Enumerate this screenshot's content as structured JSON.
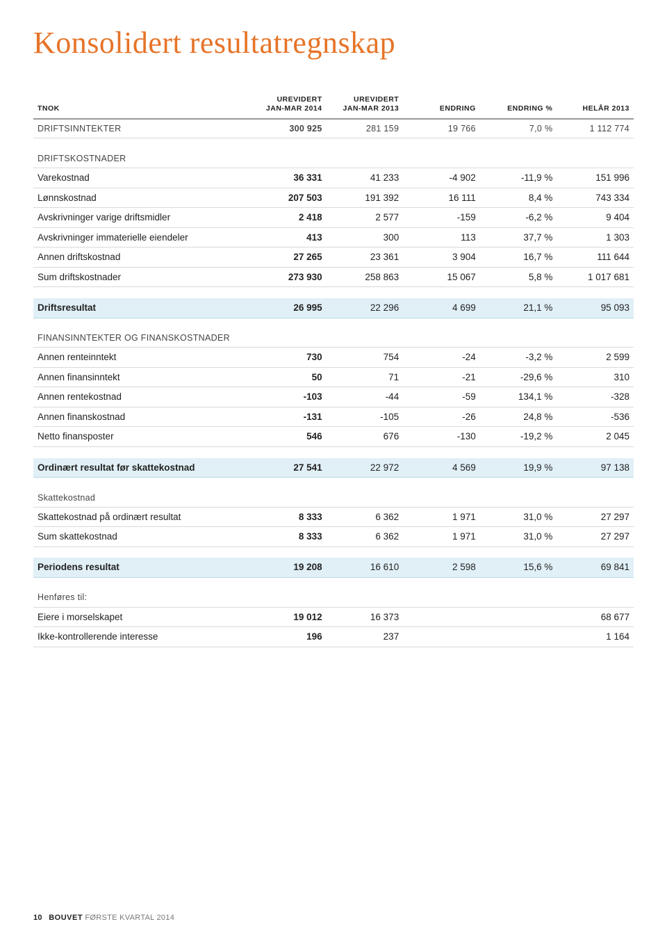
{
  "title": "Konsolidert resultatregnskap",
  "title_color": "#e67428",
  "columns": {
    "label": "TNOK",
    "c1_line1": "UREVIDERT",
    "c1_line2": "JAN-MAR 2014",
    "c2_line1": "UREVIDERT",
    "c2_line2": "JAN-MAR 2013",
    "c3": "ENDRING",
    "c4": "ENDRING %",
    "c5": "HELÅR 2013"
  },
  "rows": [
    {
      "type": "header",
      "label": "DRIFTSINNTEKTER",
      "c1": "300 925",
      "c2": "281 159",
      "c3": "19 766",
      "c4": "7,0 %",
      "c5": "1 112 774"
    },
    {
      "type": "spacer"
    },
    {
      "type": "section",
      "label": "DRIFTSKOSTNADER"
    },
    {
      "type": "data",
      "label": "Varekostnad",
      "c1": "36 331",
      "c2": "41 233",
      "c3": "-4 902",
      "c4": "-11,9 %",
      "c5": "151 996"
    },
    {
      "type": "data",
      "label": "Lønnskostnad",
      "c1": "207 503",
      "c2": "191 392",
      "c3": "16 111",
      "c4": "8,4 %",
      "c5": "743 334"
    },
    {
      "type": "data",
      "label": "Avskrivninger varige driftsmidler",
      "c1": "2 418",
      "c2": "2 577",
      "c3": "-159",
      "c4": "-6,2 %",
      "c5": "9 404"
    },
    {
      "type": "data",
      "label": "Avskrivninger immaterielle eiendeler",
      "c1": "413",
      "c2": "300",
      "c3": "113",
      "c4": "37,7 %",
      "c5": "1 303"
    },
    {
      "type": "data",
      "label": "Annen driftskostnad",
      "c1": "27 265",
      "c2": "23 361",
      "c3": "3 904",
      "c4": "16,7 %",
      "c5": "111 644"
    },
    {
      "type": "data",
      "label": "Sum driftskostnader",
      "c1": "273 930",
      "c2": "258 863",
      "c3": "15 067",
      "c4": "5,8 %",
      "c5": "1 017 681"
    },
    {
      "type": "spacer"
    },
    {
      "type": "highlight",
      "label": "Driftsresultat",
      "c1": "26 995",
      "c2": "22 296",
      "c3": "4 699",
      "c4": "21,1 %",
      "c5": "95 093"
    },
    {
      "type": "spacer"
    },
    {
      "type": "section",
      "label": "FINANSINNTEKTER OG FINANSKOSTNADER"
    },
    {
      "type": "data",
      "label": "Annen renteinntekt",
      "c1": "730",
      "c2": "754",
      "c3": "-24",
      "c4": "-3,2 %",
      "c5": "2 599"
    },
    {
      "type": "data",
      "label": "Annen finansinntekt",
      "c1": "50",
      "c2": "71",
      "c3": "-21",
      "c4": "-29,6 %",
      "c5": "310"
    },
    {
      "type": "data",
      "label": "Annen rentekostnad",
      "c1": "-103",
      "c2": "-44",
      "c3": "-59",
      "c4": "134,1 %",
      "c5": "-328"
    },
    {
      "type": "data",
      "label": "Annen finanskostnad",
      "c1": "-131",
      "c2": "-105",
      "c3": "-26",
      "c4": "24,8 %",
      "c5": "-536"
    },
    {
      "type": "data",
      "label": "Netto finansposter",
      "c1": "546",
      "c2": "676",
      "c3": "-130",
      "c4": "-19,2 %",
      "c5": "2 045"
    },
    {
      "type": "spacer"
    },
    {
      "type": "highlight",
      "label": "Ordinært resultat før skattekostnad",
      "c1": "27 541",
      "c2": "22 972",
      "c3": "4 569",
      "c4": "19,9 %",
      "c5": "97 138"
    },
    {
      "type": "spacer"
    },
    {
      "type": "section",
      "label": "Skattekostnad"
    },
    {
      "type": "data",
      "label": "Skattekostnad på ordinært resultat",
      "c1": "8 333",
      "c2": "6 362",
      "c3": "1 971",
      "c4": "31,0 %",
      "c5": "27 297"
    },
    {
      "type": "data",
      "label": "Sum skattekostnad",
      "c1": "8 333",
      "c2": "6 362",
      "c3": "1 971",
      "c4": "31,0 %",
      "c5": "27 297"
    },
    {
      "type": "spacer"
    },
    {
      "type": "highlight",
      "label": "Periodens resultat",
      "c1": "19 208",
      "c2": "16 610",
      "c3": "2 598",
      "c4": "15,6 %",
      "c5": "69 841"
    },
    {
      "type": "spacer"
    },
    {
      "type": "section",
      "label": "Henføres til:"
    },
    {
      "type": "data",
      "label": "Eiere i morselskapet",
      "c1": "19 012",
      "c2": "16 373",
      "c3": "",
      "c4": "",
      "c5": "68 677"
    },
    {
      "type": "data",
      "label": "Ikke-kontrollerende interesse",
      "c1": "196",
      "c2": "237",
      "c3": "",
      "c4": "",
      "c5": "1 164"
    }
  ],
  "footer": {
    "page": "10",
    "brand": "BOUVET",
    "text": "FØRSTE KVARTAL 2014"
  }
}
